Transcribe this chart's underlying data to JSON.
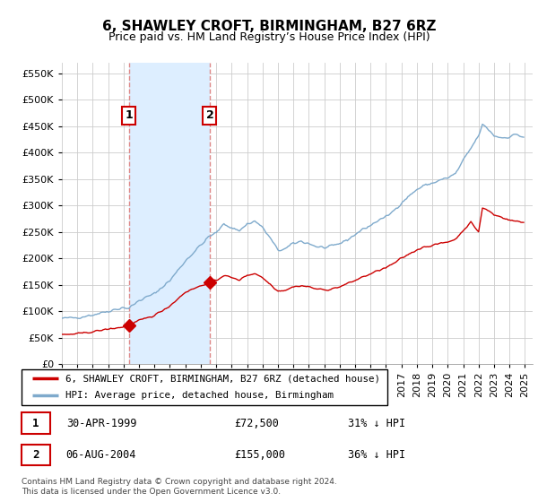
{
  "title": "6, SHAWLEY CROFT, BIRMINGHAM, B27 6RZ",
  "subtitle": "Price paid vs. HM Land Registry’s House Price Index (HPI)",
  "legend_property": "6, SHAWLEY CROFT, BIRMINGHAM, B27 6RZ (detached house)",
  "legend_hpi": "HPI: Average price, detached house, Birmingham",
  "footnote": "Contains HM Land Registry data © Crown copyright and database right 2024.\nThis data is licensed under the Open Government Licence v3.0.",
  "transaction1_date": "30-APR-1999",
  "transaction1_price": 72500,
  "transaction1_label": "31% ↓ HPI",
  "transaction2_date": "06-AUG-2004",
  "transaction2_price": 155000,
  "transaction2_label": "36% ↓ HPI",
  "property_color": "#cc0000",
  "hpi_color": "#7faacc",
  "shade_color": "#ddeeff",
  "vline_color": "#dd8888",
  "background_color": "#ffffff",
  "grid_color": "#cccccc",
  "ylim": [
    0,
    570000
  ],
  "yticks": [
    0,
    50000,
    100000,
    150000,
    200000,
    250000,
    300000,
    350000,
    400000,
    450000,
    500000,
    550000
  ],
  "sale1_year": 1999.33,
  "sale1_price": 72500,
  "sale2_year": 2004.58,
  "sale2_price": 155000,
  "xlim_start": 1995.0,
  "xlim_end": 2025.5
}
